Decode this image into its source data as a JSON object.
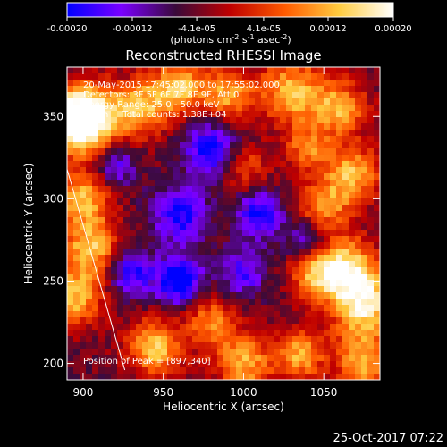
{
  "colorbar": {
    "ticks": [
      "-0.00020",
      "-0.00012",
      "-4.1e-05",
      "4.1e-05",
      "0.00012",
      "0.00020"
    ],
    "tick_values": [
      -0.0002,
      -0.00012,
      -4.1e-05,
      4.1e-05,
      0.00012,
      0.0002
    ],
    "range": [
      -0.0002,
      0.0002
    ],
    "units_label": "(photons cm^-2 s^-1 asec^-2)",
    "colors": [
      "#0000ff",
      "#7a00ff",
      "#3a0a3a",
      "#c00000",
      "#ff5a00",
      "#ffcc40",
      "#ffffff"
    ]
  },
  "chart_data": {
    "type": "heatmap",
    "title": "Reconstructed RHESSI Image",
    "xlabel": "Heliocentric X (arcsec)",
    "ylabel": "Heliocentric Y (arcsec)",
    "xlim": [
      890,
      1085
    ],
    "ylim": [
      190,
      380
    ],
    "x_ticks": [
      900,
      950,
      1000,
      1050
    ],
    "y_ticks": [
      200,
      250,
      300,
      350
    ],
    "annotations": [
      "20-May-2015 17:45:02.000 to 17:55:02.000",
      "Detectors: 3F 5F 6F 7F 8F 9F, Att 0",
      "Energy Range: 25.0 - 50.0 keV",
      "Clean     Total counts: 1.38E+04"
    ],
    "peak_label": "Position of Peak = [897,340]",
    "peak_position": [
      897,
      340
    ],
    "limb_line": {
      "x": [
        890,
        926
      ],
      "y": [
        318,
        196
      ]
    },
    "hot_regions": [
      {
        "x": 893,
        "y": 347,
        "strength": 1.0,
        "width": 14
      },
      {
        "x": 905,
        "y": 350,
        "strength": 0.85,
        "width": 13
      },
      {
        "x": 935,
        "y": 355,
        "strength": 0.75,
        "width": 12
      },
      {
        "x": 960,
        "y": 368,
        "strength": 0.8,
        "width": 12
      },
      {
        "x": 990,
        "y": 363,
        "strength": 0.7,
        "width": 11
      },
      {
        "x": 1030,
        "y": 365,
        "strength": 0.78,
        "width": 14
      },
      {
        "x": 1060,
        "y": 355,
        "strength": 0.7,
        "width": 12
      },
      {
        "x": 1068,
        "y": 315,
        "strength": 0.75,
        "width": 12
      },
      {
        "x": 1040,
        "y": 330,
        "strength": 0.55,
        "width": 10
      },
      {
        "x": 1000,
        "y": 320,
        "strength": 0.5,
        "width": 10
      },
      {
        "x": 1050,
        "y": 295,
        "strength": 0.65,
        "width": 11
      },
      {
        "x": 900,
        "y": 300,
        "strength": 0.75,
        "width": 12
      },
      {
        "x": 905,
        "y": 270,
        "strength": 0.8,
        "width": 12
      },
      {
        "x": 895,
        "y": 240,
        "strength": 0.78,
        "width": 12
      },
      {
        "x": 1065,
        "y": 258,
        "strength": 0.85,
        "width": 13
      },
      {
        "x": 1075,
        "y": 235,
        "strength": 0.95,
        "width": 14
      },
      {
        "x": 1045,
        "y": 255,
        "strength": 0.7,
        "width": 11
      },
      {
        "x": 980,
        "y": 225,
        "strength": 0.6,
        "width": 11
      },
      {
        "x": 945,
        "y": 210,
        "strength": 0.82,
        "width": 12
      },
      {
        "x": 1000,
        "y": 200,
        "strength": 0.75,
        "width": 12
      },
      {
        "x": 1035,
        "y": 205,
        "strength": 0.7,
        "width": 11
      },
      {
        "x": 1075,
        "y": 200,
        "strength": 0.72,
        "width": 12
      }
    ],
    "cold_regions": [
      {
        "x": 980,
        "y": 330,
        "strength": 0.85,
        "width": 12
      },
      {
        "x": 1010,
        "y": 290,
        "strength": 0.8,
        "width": 10
      },
      {
        "x": 960,
        "y": 290,
        "strength": 0.75,
        "width": 12
      },
      {
        "x": 960,
        "y": 250,
        "strength": 1.0,
        "width": 10
      },
      {
        "x": 930,
        "y": 255,
        "strength": 0.7,
        "width": 10
      },
      {
        "x": 1000,
        "y": 255,
        "strength": 0.6,
        "width": 10
      },
      {
        "x": 1040,
        "y": 275,
        "strength": 0.55,
        "width": 9
      },
      {
        "x": 920,
        "y": 320,
        "strength": 0.55,
        "width": 9
      }
    ]
  },
  "timestamp": "25-Oct-2017 07:22"
}
